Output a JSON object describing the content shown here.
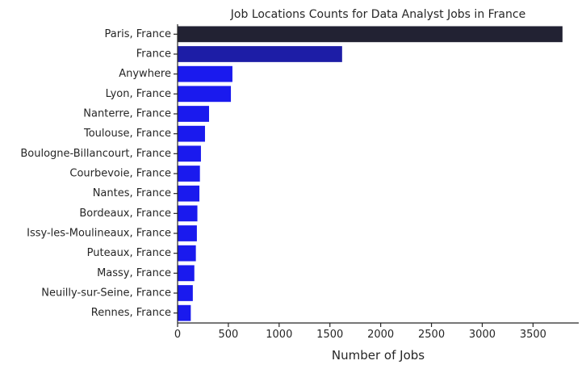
{
  "chart_data": {
    "type": "bar",
    "orientation": "horizontal",
    "title": "Job Locations Counts for Data Analyst Jobs in France",
    "xlabel": "Number of Jobs",
    "ylabel": "",
    "xlim": [
      0,
      3950
    ],
    "xticks": [
      0,
      500,
      1000,
      1500,
      2000,
      2500,
      3000,
      3500
    ],
    "grid": false,
    "legend": "none",
    "categories": [
      "Paris, France",
      "France",
      "Anywhere",
      "Lyon, France",
      "Nanterre, France",
      "Toulouse, France",
      "Boulogne-Billancourt, France",
      "Courbevoie, France",
      "Nantes, France",
      "Bordeaux, France",
      "Issy-les-Moulineaux, France",
      "Puteaux, France",
      "Massy, France",
      "Neuilly-sur-Seine, France",
      "Rennes, France"
    ],
    "values": [
      3790,
      1620,
      540,
      525,
      310,
      270,
      230,
      220,
      215,
      195,
      190,
      180,
      165,
      150,
      130
    ],
    "colors": [
      "#222233",
      "#1d1da6",
      "#1a1aee",
      "#1a1aee",
      "#1a1aee",
      "#1a1aee",
      "#1a1aee",
      "#1a1aee",
      "#1a1aee",
      "#1a1aee",
      "#1a1aee",
      "#1a1aee",
      "#1a1aee",
      "#1a1aee",
      "#1a1aee"
    ]
  }
}
